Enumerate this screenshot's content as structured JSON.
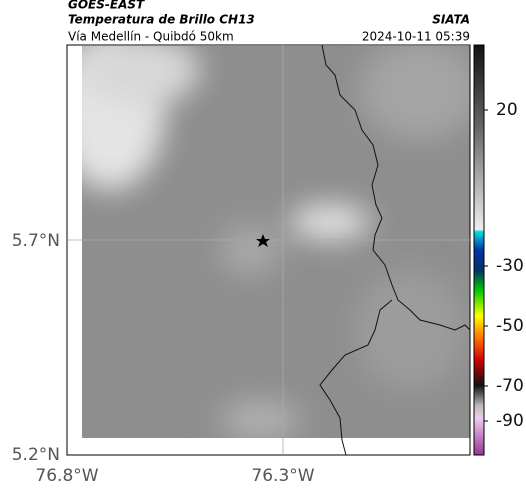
{
  "header": {
    "satellite": "GOES-EAST",
    "product": "Temperatura de Brillo CH13",
    "source": "SIATA",
    "region": "Vía Medellín - Quibdó 50km",
    "timestamp": "2024-10-11 05:39"
  },
  "axes": {
    "x_labels": [
      "76.8°W",
      "76.3°W"
    ],
    "y_labels": [
      "5.7°N",
      "5.2°N"
    ]
  },
  "colorbar": {
    "tick_labels": [
      "20",
      "-30",
      "-50",
      "-70",
      "-90"
    ]
  }
}
